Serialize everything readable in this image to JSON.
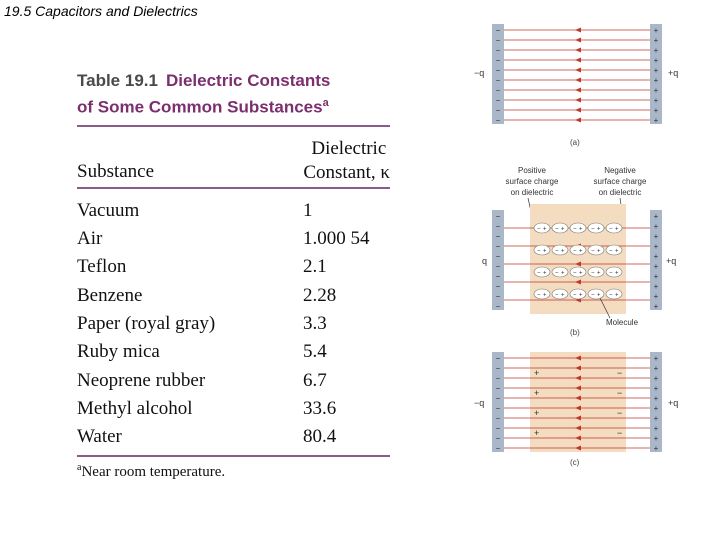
{
  "slide": {
    "title": "19.5 Capacitors and Dielectrics"
  },
  "table": {
    "number": "Table 19.1",
    "title_line1": "Dielectric Constants",
    "title_line2": "of Some Common Substances",
    "title_footnote_mark": "a",
    "col_substance": "Substance",
    "col_constant_line1": "Dielectric",
    "col_constant_line2": "Constant, κ",
    "rows": [
      {
        "substance": "Vacuum",
        "value": "1"
      },
      {
        "substance": "Air",
        "value": "1.000 54"
      },
      {
        "substance": "Teflon",
        "value": "2.1"
      },
      {
        "substance": "Benzene",
        "value": "2.28"
      },
      {
        "substance": "Paper (royal gray)",
        "value": "3.3"
      },
      {
        "substance": "Ruby mica",
        "value": "5.4"
      },
      {
        "substance": "Neoprene rubber",
        "value": "6.7"
      },
      {
        "substance": "Methyl alcohol",
        "value": "33.6"
      },
      {
        "substance": "Water",
        "value": "80.4"
      }
    ],
    "footnote_mark": "a",
    "footnote": "Near room temperature."
  },
  "diagram": {
    "a": {
      "left_label": "−q",
      "right_label": "+q",
      "caption": "(a)"
    },
    "b": {
      "left_label": "q",
      "right_label": "+q",
      "caption": "(b)",
      "positive_label_1": "Positive",
      "positive_label_2": "surface charge",
      "positive_label_3": "on dielectric",
      "negative_label_1": "Negative",
      "negative_label_2": "surface charge",
      "negative_label_3": "on dielectric",
      "molecule_label": "Molecule"
    },
    "c": {
      "left_label": "−q",
      "right_label": "+q",
      "caption": "(c)"
    },
    "colors": {
      "plate": "#a9b7c8",
      "field": "#c0392b",
      "dielectric": "#f4dcc0"
    }
  }
}
